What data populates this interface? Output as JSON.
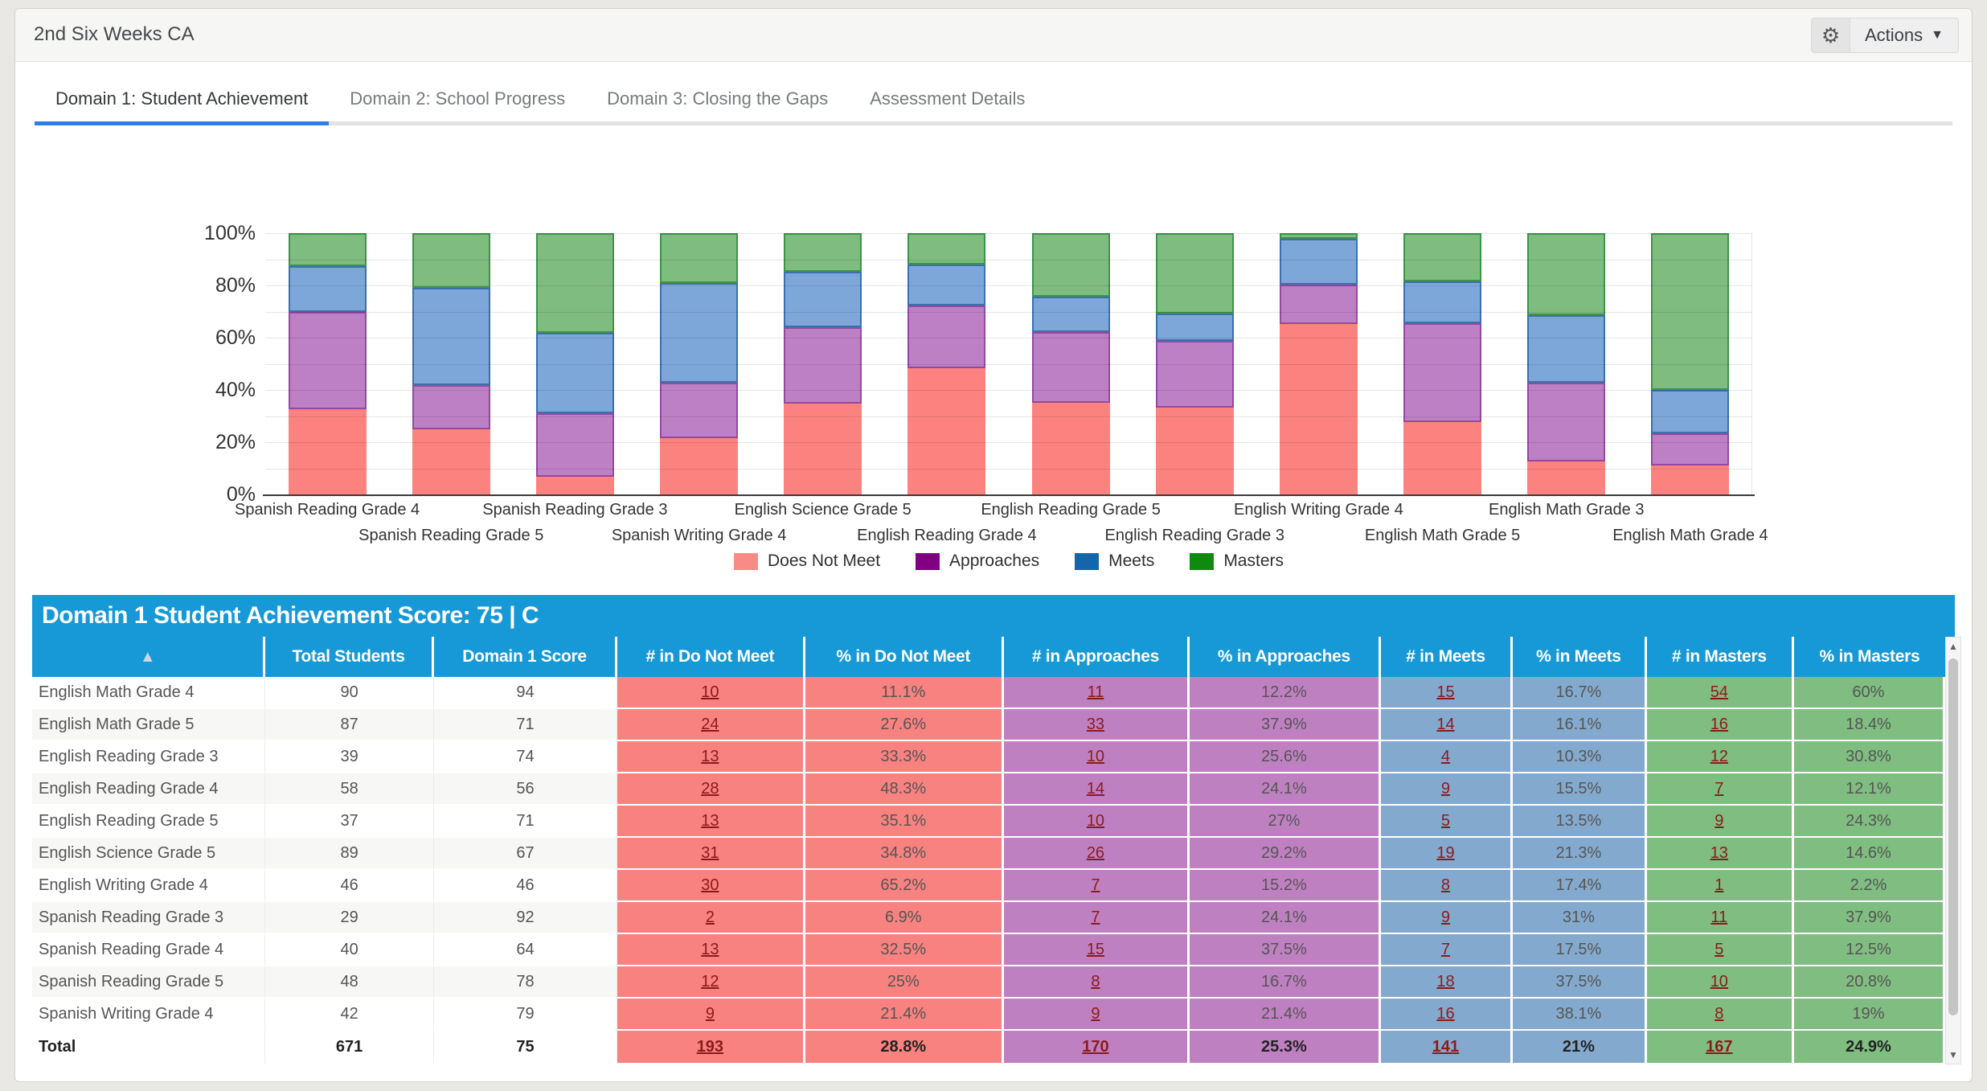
{
  "header": {
    "title": "2nd Six Weeks CA",
    "actions_label": "Actions"
  },
  "tabs": [
    {
      "label": "Domain 1: Student Achievement",
      "active": true
    },
    {
      "label": "Domain 2: School Progress",
      "active": false
    },
    {
      "label": "Domain 3: Closing the Gaps",
      "active": false
    },
    {
      "label": "Assessment Details",
      "active": false
    }
  ],
  "colors": {
    "banner_blue": "#1699d6",
    "tab_active_blue": "#2d7ee9",
    "legend": {
      "does_not_meet": "#f98b87",
      "approaches": "#800080",
      "meets": "#1565ab",
      "masters": "#0e8a0e"
    },
    "bar_fill": {
      "does_not_meet": "#fb827e",
      "approaches": "#bd80c5",
      "meets": "#7da7d8",
      "masters": "#7fbc80"
    },
    "bar_border": {
      "does_not_meet": "#fb827e",
      "approaches": "#9449a0",
      "meets": "#3a70ae",
      "masters": "#3f9347"
    },
    "cell": {
      "does_not_meet": "#f8827f",
      "approaches": "#bf80c2",
      "meets": "#83aace",
      "masters": "#80bd81"
    },
    "link_red": "#8b1b1b"
  },
  "chart_data": {
    "type": "bar",
    "subtype": "100%-stacked-vertical",
    "ylabel": "",
    "xlabel": "",
    "ylim": [
      0,
      100
    ],
    "y_tick_labels": [
      "0%",
      "20%",
      "40%",
      "60%",
      "80%",
      "100%"
    ],
    "gridline_step_pct": 10,
    "legend_position": "bottom-center",
    "series_names": [
      "Does Not Meet",
      "Approaches",
      "Meets",
      "Masters"
    ],
    "categories": [
      "Spanish Reading Grade 4",
      "Spanish Reading Grade 5",
      "Spanish Reading Grade 3",
      "Spanish Writing Grade 4",
      "English Science Grade 5",
      "English Reading Grade 4",
      "English Reading Grade 5",
      "English Reading Grade 3",
      "English Writing Grade 4",
      "English Math Grade 5",
      "English Math Grade 3",
      "English Math Grade 4"
    ],
    "series": [
      {
        "name": "Does Not Meet",
        "values": [
          32.5,
          25.0,
          6.9,
          21.4,
          34.8,
          48.3,
          35.1,
          33.3,
          65.2,
          27.6,
          12.6,
          11.1
        ]
      },
      {
        "name": "Approaches",
        "values": [
          37.5,
          16.7,
          24.1,
          21.4,
          29.2,
          24.1,
          27.0,
          25.6,
          15.2,
          37.9,
          30.2,
          12.2
        ]
      },
      {
        "name": "Meets",
        "values": [
          17.5,
          37.5,
          31.0,
          38.1,
          21.3,
          15.5,
          13.5,
          10.3,
          17.4,
          16.1,
          25.7,
          16.7
        ]
      },
      {
        "name": "Masters",
        "values": [
          12.5,
          20.8,
          37.9,
          19.0,
          14.6,
          12.1,
          24.3,
          30.8,
          2.2,
          18.4,
          31.5,
          60.0
        ]
      }
    ]
  },
  "banner": {
    "text": "Domain 1 Student Achievement Score: 75 | C"
  },
  "table": {
    "sort_icon": "▲",
    "columns": [
      "",
      "Total Students",
      "Domain 1 Score",
      "# in Do Not Meet",
      "% in Do Not Meet",
      "# in Approaches",
      "% in Approaches",
      "# in Meets",
      "% in Meets",
      "# in Masters",
      "% in Masters"
    ],
    "rows": [
      {
        "name": "English Math Grade 4",
        "total": "90",
        "score": "94",
        "dnm_n": "10",
        "dnm_p": "11.1%",
        "app_n": "11",
        "app_p": "12.2%",
        "meets_n": "15",
        "meets_p": "16.7%",
        "mast_n": "54",
        "mast_p": "60%"
      },
      {
        "name": "English Math Grade 5",
        "total": "87",
        "score": "71",
        "dnm_n": "24",
        "dnm_p": "27.6%",
        "app_n": "33",
        "app_p": "37.9%",
        "meets_n": "14",
        "meets_p": "16.1%",
        "mast_n": "16",
        "mast_p": "18.4%"
      },
      {
        "name": "English Reading Grade 3",
        "total": "39",
        "score": "74",
        "dnm_n": "13",
        "dnm_p": "33.3%",
        "app_n": "10",
        "app_p": "25.6%",
        "meets_n": "4",
        "meets_p": "10.3%",
        "mast_n": "12",
        "mast_p": "30.8%"
      },
      {
        "name": "English Reading Grade 4",
        "total": "58",
        "score": "56",
        "dnm_n": "28",
        "dnm_p": "48.3%",
        "app_n": "14",
        "app_p": "24.1%",
        "meets_n": "9",
        "meets_p": "15.5%",
        "mast_n": "7",
        "mast_p": "12.1%"
      },
      {
        "name": "English Reading Grade 5",
        "total": "37",
        "score": "71",
        "dnm_n": "13",
        "dnm_p": "35.1%",
        "app_n": "10",
        "app_p": "27%",
        "meets_n": "5",
        "meets_p": "13.5%",
        "mast_n": "9",
        "mast_p": "24.3%"
      },
      {
        "name": "English Science Grade 5",
        "total": "89",
        "score": "67",
        "dnm_n": "31",
        "dnm_p": "34.8%",
        "app_n": "26",
        "app_p": "29.2%",
        "meets_n": "19",
        "meets_p": "21.3%",
        "mast_n": "13",
        "mast_p": "14.6%"
      },
      {
        "name": "English Writing Grade 4",
        "total": "46",
        "score": "46",
        "dnm_n": "30",
        "dnm_p": "65.2%",
        "app_n": "7",
        "app_p": "15.2%",
        "meets_n": "8",
        "meets_p": "17.4%",
        "mast_n": "1",
        "mast_p": "2.2%"
      },
      {
        "name": "Spanish Reading Grade 3",
        "total": "29",
        "score": "92",
        "dnm_n": "2",
        "dnm_p": "6.9%",
        "app_n": "7",
        "app_p": "24.1%",
        "meets_n": "9",
        "meets_p": "31%",
        "mast_n": "11",
        "mast_p": "37.9%"
      },
      {
        "name": "Spanish Reading Grade 4",
        "total": "40",
        "score": "64",
        "dnm_n": "13",
        "dnm_p": "32.5%",
        "app_n": "15",
        "app_p": "37.5%",
        "meets_n": "7",
        "meets_p": "17.5%",
        "mast_n": "5",
        "mast_p": "12.5%"
      },
      {
        "name": "Spanish Reading Grade 5",
        "total": "48",
        "score": "78",
        "dnm_n": "12",
        "dnm_p": "25%",
        "app_n": "8",
        "app_p": "16.7%",
        "meets_n": "18",
        "meets_p": "37.5%",
        "mast_n": "10",
        "mast_p": "20.8%"
      },
      {
        "name": "Spanish Writing Grade 4",
        "total": "42",
        "score": "79",
        "dnm_n": "9",
        "dnm_p": "21.4%",
        "app_n": "9",
        "app_p": "21.4%",
        "meets_n": "16",
        "meets_p": "38.1%",
        "mast_n": "8",
        "mast_p": "19%"
      }
    ],
    "total_row": {
      "name": "Total",
      "total": "671",
      "score": "75",
      "dnm_n": "193",
      "dnm_p": "28.8%",
      "app_n": "170",
      "app_p": "25.3%",
      "meets_n": "141",
      "meets_p": "21%",
      "mast_n": "167",
      "mast_p": "24.9%"
    }
  }
}
